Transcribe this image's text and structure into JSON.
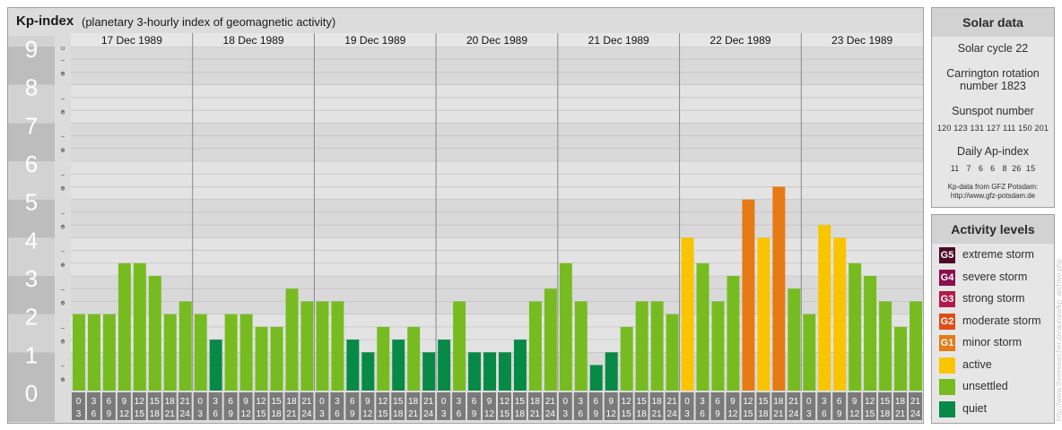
{
  "header": {
    "title": "Kp-index",
    "subtitle": "(planetary 3-hourly index of geomagnetic activity)"
  },
  "chart_data": {
    "type": "bar",
    "title": "Kp-index",
    "subtitle": "(planetary 3-hourly index of geomagnetic activity)",
    "ylim": [
      0,
      9
    ],
    "yticks": [
      "0",
      "1",
      "2",
      "3",
      "4",
      "5",
      "6",
      "7",
      "8",
      "9"
    ],
    "minor_tick_labels": [
      "+",
      "o",
      "−"
    ],
    "days": [
      "17 Dec 1989",
      "18 Dec 1989",
      "19 Dec 1989",
      "20 Dec 1989",
      "21 Dec 1989",
      "22 Dec 1989",
      "23 Dec 1989"
    ],
    "interval_start_hours": [
      "0",
      "3",
      "6",
      "9",
      "12",
      "15",
      "18",
      "21"
    ],
    "interval_end_hours": [
      "3",
      "6",
      "9",
      "12",
      "15",
      "18",
      "21",
      "24"
    ],
    "values": [
      [
        2.0,
        2.0,
        2.0,
        3.333,
        3.333,
        3.0,
        2.0,
        2.333
      ],
      [
        2.0,
        1.333,
        2.0,
        2.0,
        1.667,
        1.667,
        2.667,
        2.333
      ],
      [
        2.333,
        2.333,
        1.333,
        1.0,
        1.667,
        1.333,
        1.667,
        1.0
      ],
      [
        1.333,
        2.333,
        1.0,
        1.0,
        1.0,
        1.333,
        2.333,
        2.667
      ],
      [
        3.333,
        2.333,
        0.667,
        1.0,
        1.667,
        2.333,
        2.333,
        2.0
      ],
      [
        4.0,
        3.333,
        2.333,
        3.0,
        5.0,
        4.0,
        5.333,
        2.667
      ],
      [
        2.0,
        4.333,
        4.0,
        3.333,
        3.0,
        2.333,
        1.667,
        2.333
      ]
    ],
    "level_colors": {
      "quiet": "#078a45",
      "unsettled": "#76bc21",
      "active": "#f9c400",
      "G1": "#e67a14",
      "G2": "#de4d19",
      "G3": "#b31a4b",
      "G4": "#8a0f4e",
      "G5": "#4d0826"
    }
  },
  "solar_data": {
    "title": "Solar data",
    "solar_cycle": "Solar cycle 22",
    "carrington_line1": "Carrington rotation",
    "carrington_line2": "number 1823",
    "sunspot_title": "Sunspot number",
    "sunspot_values": "120 123 131 127 111 150 201",
    "ap_title": "Daily Ap-index",
    "ap_values": "11   7   6   6   8  26  15",
    "source_line1": "Kp-data from GFZ Potsdam:",
    "source_line2": "http://www.gfz-potsdam.de"
  },
  "activity_levels": {
    "title": "Activity levels",
    "items": [
      {
        "code": "G5",
        "label": "extreme storm",
        "color": "#4d0826"
      },
      {
        "code": "G4",
        "label": "severe storm",
        "color": "#8a0f4e"
      },
      {
        "code": "G3",
        "label": "strong storm",
        "color": "#b31a4b"
      },
      {
        "code": "G2",
        "label": "moderate storm",
        "color": "#de4d19"
      },
      {
        "code": "G1",
        "label": "minor storm",
        "color": "#e67a14"
      },
      {
        "code": "",
        "label": "active",
        "color": "#f9c400"
      },
      {
        "code": "",
        "label": "unsettled",
        "color": "#76bc21"
      },
      {
        "code": "",
        "label": "quiet",
        "color": "#078a45"
      }
    ]
  },
  "watermark": "http://www.theresearcher.de/aurora/kp_archive.php"
}
